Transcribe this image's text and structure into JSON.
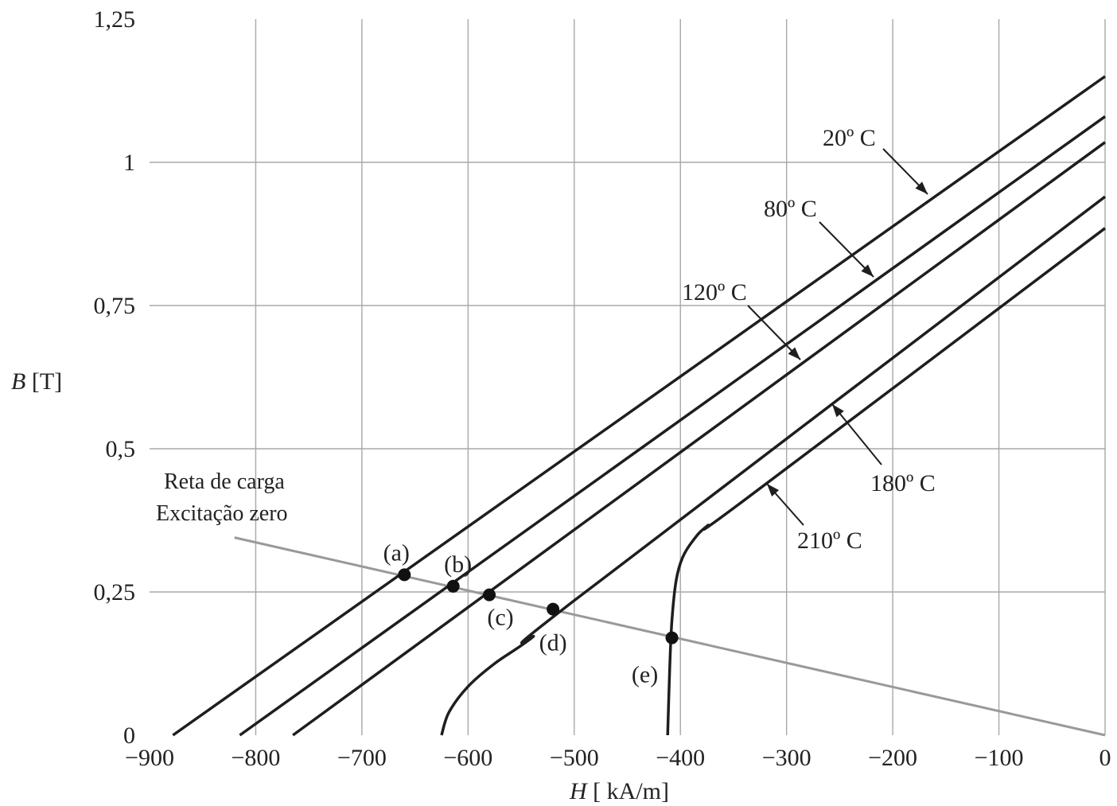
{
  "chart_data": {
    "type": "line",
    "xlabel_var": "H",
    "xlabel_unit": "[ kA/m]",
    "ylabel_var": "B",
    "ylabel_unit": "[T]",
    "xlim": [
      -900,
      0
    ],
    "ylim": [
      0,
      1.25
    ],
    "x_ticks": [
      -900,
      -800,
      -700,
      -600,
      -500,
      -400,
      -300,
      -200,
      -100,
      0
    ],
    "x_tick_labels": [
      "−900",
      "−800",
      "−700",
      "−600",
      "−500",
      "−400",
      "−300",
      "−200",
      "−100",
      "0"
    ],
    "y_ticks": [
      0,
      0.25,
      0.5,
      0.75,
      1,
      1.25
    ],
    "y_tick_labels": [
      "0",
      "0,25",
      "0,5",
      "0,75",
      "1",
      "1,25"
    ],
    "grid": true,
    "series": [
      {
        "name": "20º C",
        "points": [
          [
            -878,
            0
          ],
          [
            0,
            1.15
          ]
        ]
      },
      {
        "name": "80º C",
        "points": [
          [
            -815,
            0
          ],
          [
            0,
            1.08
          ]
        ]
      },
      {
        "name": "120º C",
        "points": [
          [
            -765,
            0
          ],
          [
            0,
            1.035
          ]
        ]
      },
      {
        "name": "180º C",
        "points": [
          [
            -625,
            0
          ],
          [
            -618,
            0.04
          ],
          [
            -600,
            0.085
          ],
          [
            -575,
            0.125
          ],
          [
            -540,
            0.17
          ],
          [
            -500,
            0.235
          ],
          [
            0,
            0.94
          ]
        ]
      },
      {
        "name": "210º C",
        "points": [
          [
            -412,
            0
          ],
          [
            -410,
            0.12
          ],
          [
            -408,
            0.2
          ],
          [
            -404,
            0.27
          ],
          [
            -398,
            0.31
          ],
          [
            -388,
            0.34
          ],
          [
            -375,
            0.365
          ],
          [
            -340,
            0.41
          ],
          [
            0,
            0.885
          ]
        ]
      }
    ],
    "load_line": {
      "label_line1": "Reta de carga",
      "label_line2": "Excitação zero",
      "points": [
        [
          -820,
          0.345
        ],
        [
          0,
          0
        ]
      ]
    },
    "operating_points": [
      {
        "label": "(a)",
        "x": -660,
        "y": 0.28
      },
      {
        "label": "(b)",
        "x": -614,
        "y": 0.26
      },
      {
        "label": "(c)",
        "x": -580,
        "y": 0.245
      },
      {
        "label": "(d)",
        "x": -520,
        "y": 0.22
      },
      {
        "label": "(e)",
        "x": -408,
        "y": 0.17
      }
    ]
  }
}
